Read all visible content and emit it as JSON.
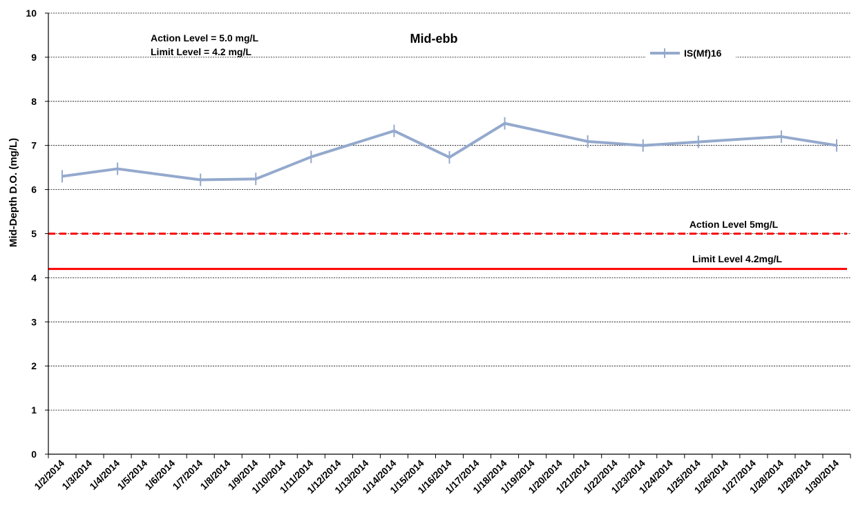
{
  "chart_data": {
    "type": "line",
    "title": "Mid-ebb",
    "xlabel": "",
    "ylabel": "Mid-Depth D.O. (mg/L)",
    "ylim": [
      0,
      10
    ],
    "yticks": [
      0,
      1,
      2,
      3,
      4,
      5,
      6,
      7,
      8,
      9,
      10
    ],
    "categories": [
      "1/2/2014",
      "1/3/2014",
      "1/4/2014",
      "1/5/2014",
      "1/6/2014",
      "1/7/2014",
      "1/8/2014",
      "1/9/2014",
      "1/10/2014",
      "1/11/2014",
      "1/12/2014",
      "1/13/2014",
      "1/14/2014",
      "1/15/2014",
      "1/16/2014",
      "1/17/2014",
      "1/18/2014",
      "1/19/2014",
      "1/20/2014",
      "1/21/2014",
      "1/22/2014",
      "1/23/2014",
      "1/24/2014",
      "1/25/2014",
      "1/26/2014",
      "1/27/2014",
      "1/28/2014",
      "1/29/2014",
      "1/30/2014"
    ],
    "series": [
      {
        "name": "IS(Mf)16",
        "color": "#94a9cd",
        "x": [
          "1/2/2014",
          "1/4/2014",
          "1/7/2014",
          "1/9/2014",
          "1/11/2014",
          "1/14/2014",
          "1/16/2014",
          "1/18/2014",
          "1/21/2014",
          "1/23/2014",
          "1/25/2014",
          "1/28/2014",
          "1/30/2014"
        ],
        "values": [
          6.3,
          6.47,
          6.22,
          6.24,
          6.74,
          7.33,
          6.73,
          7.5,
          7.09,
          7.0,
          7.08,
          7.2,
          7.0
        ]
      }
    ],
    "reference_lines": [
      {
        "label": "Action Level 5mg/L",
        "value": 5.0,
        "style": "dashed",
        "color": "#ff0000"
      },
      {
        "label": "Limit Level 4.2mg/L",
        "value": 4.2,
        "style": "solid",
        "color": "#ff0000"
      }
    ],
    "annotations": [
      "Action Level = 5.0 mg/L",
      "Limit Level = 4.2 mg/L"
    ],
    "grid": true,
    "legend_position": "top-right"
  }
}
